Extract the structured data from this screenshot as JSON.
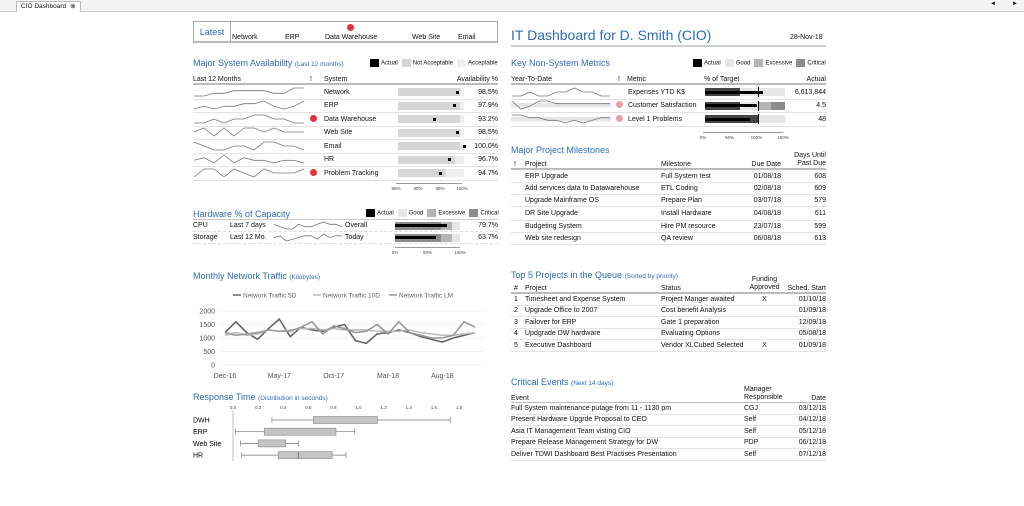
{
  "tab": {
    "label": "CIO Dashboard",
    "close": "⊗",
    "scroll_left": "◄",
    "scroll_right": "►"
  },
  "latest": {
    "label": "Latest",
    "systems": [
      {
        "name": "Network",
        "alert": false
      },
      {
        "name": "ERP",
        "alert": false
      },
      {
        "name": "Data Warehouse",
        "alert": true
      },
      {
        "name": "Web Site",
        "alert": false
      },
      {
        "name": "Email",
        "alert": false
      }
    ]
  },
  "header": {
    "title": "IT Dashboard for  D. Smith (CIO)",
    "date": "28-Nov-18"
  },
  "availability": {
    "title": "Major System Availability",
    "subtitle": "(Last 12 months)",
    "legend": [
      "Actual",
      "Not Acceptable",
      "Acceptable"
    ],
    "cols": [
      "Last 12 Months",
      "!",
      "System",
      "Availability %"
    ],
    "axis": [
      "85%",
      "90%",
      "95%",
      "100%"
    ],
    "axis_range": [
      85,
      100
    ],
    "rows": [
      {
        "system": "Network",
        "value": "98.5%",
        "pct": 98.5,
        "threshold": 99.0,
        "alert": false,
        "spark": [
          3,
          3,
          4,
          4,
          5,
          5,
          5,
          5,
          4,
          4,
          6,
          6
        ]
      },
      {
        "system": "ERP",
        "value": "97.9%",
        "pct": 97.9,
        "threshold": 99.0,
        "alert": false,
        "spark": [
          3,
          4,
          3,
          4,
          4,
          5,
          5,
          6,
          4,
          3,
          4,
          6
        ]
      },
      {
        "system": "Data Warehouse",
        "value": "93.2%",
        "pct": 93.2,
        "threshold": 99.0,
        "alert": true,
        "spark": [
          3,
          3,
          4,
          3,
          4,
          4,
          5,
          5,
          4,
          4,
          3,
          3
        ]
      },
      {
        "system": "Web Site",
        "value": "98.5%",
        "pct": 98.5,
        "threshold": 99.0,
        "alert": false,
        "spark": [
          4,
          5,
          3,
          5,
          3,
          5,
          5,
          4,
          5,
          4,
          4,
          4
        ]
      },
      {
        "system": "Email",
        "value": "100.0%",
        "pct": 100,
        "threshold": 99.0,
        "alert": false,
        "spark": [
          5,
          4,
          3,
          3,
          4,
          4,
          3,
          5,
          5,
          4,
          4,
          3
        ]
      },
      {
        "system": "HR",
        "value": "96.7%",
        "pct": 96.7,
        "threshold": 98.0,
        "alert": false,
        "spark": [
          4,
          5,
          3,
          6,
          3,
          5,
          4,
          4,
          3,
          4,
          4,
          3
        ]
      },
      {
        "system": "Problem Tracking",
        "value": "94.7%",
        "pct": 94.7,
        "threshold": 96.0,
        "alert": true,
        "spark": [
          3,
          5,
          5,
          3,
          5,
          4,
          3,
          5,
          4,
          4,
          4,
          5
        ]
      }
    ]
  },
  "hardware": {
    "title": "Hardware % of Capacity",
    "legend": [
      "Actual",
      "Good",
      "Excessive",
      "Critical"
    ],
    "axis": [
      "0%",
      "50%",
      "100%"
    ],
    "rows": [
      {
        "name": "CPU",
        "period": "Last 7 days",
        "scope": "Overall",
        "value": "79.7%",
        "pct": 79.7,
        "spark": [
          5,
          4,
          3,
          3,
          5,
          4,
          4,
          5,
          6,
          5,
          5,
          4
        ]
      },
      {
        "name": "Storage",
        "period": "Last 12 Mo.",
        "scope": "Today",
        "value": "63.7%",
        "pct": 63.7,
        "spark": [
          4,
          5,
          2,
          3,
          4,
          5,
          5,
          3,
          6,
          4,
          5,
          5
        ]
      }
    ]
  },
  "traffic": {
    "title": "Monthly Network Traffic",
    "subtitle": "(Kilobytes)",
    "chart_data": {
      "type": "line",
      "ylim": [
        0,
        2000
      ],
      "yticks": [
        0,
        500,
        1000,
        1500,
        2000
      ],
      "xticks": [
        "Dec-16",
        "May-17",
        "Oct-17",
        "Mar-18",
        "Aug-18"
      ],
      "x": [
        "Dec-16",
        "Jan-17",
        "Feb-17",
        "Mar-17",
        "Apr-17",
        "May-17",
        "Jun-17",
        "Jul-17",
        "Aug-17",
        "Sep-17",
        "Oct-17",
        "Nov-17",
        "Dec-17",
        "Jan-18",
        "Feb-18",
        "Mar-18",
        "Apr-18",
        "May-18",
        "Jun-18",
        "Jul-18",
        "Aug-18",
        "Sep-18",
        "Oct-18",
        "Nov-18"
      ],
      "series": [
        {
          "name": "Network Traffic 5D",
          "values": [
            1200,
            1600,
            1200,
            950,
            1350,
            1700,
            1050,
            1400,
            1300,
            1250,
            1400,
            1500,
            900,
            800,
            1150,
            1200,
            1300,
            1200,
            1050,
            950,
            850,
            1000,
            1100,
            1200
          ]
        },
        {
          "name": "Network Traffic 10D",
          "values": [
            1100,
            1200,
            1100,
            1150,
            1300,
            1250,
            1300,
            1350,
            1350,
            1300,
            1350,
            1300,
            1300,
            1300,
            1250,
            1250,
            1250,
            1300,
            1200,
            1150,
            1100,
            1100,
            1150,
            1200
          ]
        },
        {
          "name": "Network Traffic LM",
          "values": [
            1200,
            1100,
            1150,
            1200,
            1300,
            1250,
            1250,
            1400,
            1600,
            1150,
            1450,
            1350,
            1200,
            1250,
            1500,
            1150,
            1600,
            1200,
            1100,
            1000,
            1000,
            1100,
            1600,
            1400
          ]
        }
      ]
    }
  },
  "response": {
    "title": "Response Time",
    "subtitle": "(Distribution in seconds)",
    "chart_data": {
      "type": "box",
      "xlim": [
        0,
        1.8
      ],
      "xticks": [
        "0.0",
        "0.2",
        "0.4",
        "0.6",
        "0.8",
        "1.0",
        "1.2",
        "1.4",
        "1.6",
        "1.8"
      ],
      "rows": [
        {
          "name": "DWH",
          "min": 0.31,
          "q1": 0.64,
          "q3": 1.15,
          "max": 1.73
        },
        {
          "name": "ERP",
          "min": 0.02,
          "q1": 0.25,
          "q3": 0.82,
          "max": 0.97
        },
        {
          "name": "Web Site",
          "min": 0.06,
          "q1": 0.2,
          "q3": 0.42,
          "max": 0.52
        },
        {
          "name": "HR",
          "min": 0.07,
          "q1": 0.36,
          "median": 0.52,
          "q3": 0.79,
          "max": 0.9
        }
      ]
    }
  },
  "metrics": {
    "title": "Key Non-System Metrics",
    "legend": [
      "Actual",
      "Good",
      "Excessive",
      "Critical"
    ],
    "cols": [
      "Year-To-Date",
      "!",
      "Metric",
      "% of Target",
      "Actual"
    ],
    "axis": [
      "0%",
      "50%",
      "100%",
      "150%"
    ],
    "rows": [
      {
        "metric": "Expenses YTD K$",
        "value": "6,613,844",
        "pct": 109,
        "alert": false,
        "spark": [
          4,
          4,
          5,
          4,
          4,
          5,
          5,
          6,
          5,
          5,
          4,
          4
        ]
      },
      {
        "metric": "Customer Satisfaction",
        "value": "4.5",
        "pct": 98,
        "alert": true,
        "spark": [
          5,
          2,
          3,
          5,
          5,
          4,
          4,
          4,
          4,
          4,
          4,
          4
        ]
      },
      {
        "metric": "Level 1 Problems",
        "value": "48",
        "pct": 85,
        "alert": true,
        "spark": [
          5,
          5,
          4,
          4,
          3,
          3,
          2,
          3,
          2,
          3,
          4,
          4
        ]
      }
    ]
  },
  "milestones": {
    "title": "Major Project Milestones",
    "cols": [
      "!",
      "Project",
      "Milestone",
      "Due Date",
      "Days Until Past Due"
    ],
    "rows": [
      [
        "ERP Upgrade",
        "Full System test",
        "01/08/18",
        "608"
      ],
      [
        "Add services data to Datawarehouse",
        "ETL Coding",
        "02/08/18",
        "609"
      ],
      [
        "Upgrade Mainframe OS",
        "Prepare Plan",
        "03/07/18",
        "579"
      ],
      [
        "DR Site Upgrade",
        "Install Hardware",
        "04/08/18",
        "611"
      ],
      [
        "Budgeting System",
        "Hire PM resource",
        "23/07/18",
        "599"
      ],
      [
        "Web site redesign",
        "QA review",
        "06/08/18",
        "613"
      ]
    ]
  },
  "queue": {
    "title": "Top 5 Projects in the Queue",
    "subtitle": "(Sorted by priority)",
    "cols": [
      "#",
      "Project",
      "Status",
      "Funding Approved",
      "Sched. Start"
    ],
    "rows": [
      [
        "1",
        "Timesheet and Expense System",
        "Project Manger awaited",
        "X",
        "01/10/18"
      ],
      [
        "2",
        "Upgrade Office to 2007",
        "Cost benefit Analysis",
        "",
        "01/09/18"
      ],
      [
        "3",
        "Failover for ERP",
        "Gate 1 preparation",
        "",
        "12/09/18"
      ],
      [
        "4",
        "Updgrade DW hardware",
        "Evaluating Options",
        "",
        "05/08/18"
      ],
      [
        "5",
        "Executive Dashboard",
        "Vendor XLCubed Selected",
        "X",
        "01/09/18"
      ]
    ]
  },
  "events": {
    "title": "Critical Events",
    "subtitle": "(Next 14 days)",
    "cols": [
      "Event",
      "Manager Responsible",
      "Date"
    ],
    "rows": [
      [
        "Full System maintenance putage from 11 - 1130 pm",
        "CGJ",
        "03/12/18"
      ],
      [
        "Present Hardware Upgrde Proposal to CEO",
        "Self",
        "04/12/18"
      ],
      [
        "Asia IT Management Team visting CIO",
        "Self",
        "05/12/18"
      ],
      [
        "Prepare Release Management Strategy for DW",
        "PDP",
        "06/12/18"
      ],
      [
        "Deliver  TDWI Dashboard Best Practises Presentation",
        "Self",
        "07/12/18"
      ]
    ]
  },
  "colors": {
    "accent": "#2e6db4",
    "alert": "#e0323a",
    "warn": "#e8a0a6",
    "actual": "#000000",
    "good": "#e6e6e6",
    "excessive": "#b4b4b4",
    "critical": "#8c8c8c"
  }
}
